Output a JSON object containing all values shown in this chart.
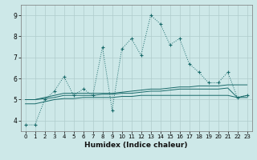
{
  "title": "",
  "xlabel": "Humidex (Indice chaleur)",
  "bg_color": "#cde8e8",
  "grid_color": "#b0cccc",
  "line_color": "#1a6b6b",
  "x": [
    0,
    1,
    2,
    3,
    4,
    5,
    6,
    7,
    8,
    9,
    10,
    11,
    12,
    13,
    14,
    15,
    16,
    17,
    18,
    19,
    20,
    21,
    22,
    23
  ],
  "series1": [
    3.8,
    3.8,
    5.0,
    5.4,
    6.1,
    5.2,
    5.5,
    5.2,
    7.5,
    4.5,
    7.4,
    7.9,
    7.1,
    9.0,
    8.6,
    7.6,
    7.9,
    6.7,
    6.3,
    5.8,
    5.8,
    6.3,
    5.1,
    5.2
  ],
  "series2": [
    5.0,
    5.0,
    5.1,
    5.2,
    5.3,
    5.3,
    5.3,
    5.3,
    5.3,
    5.3,
    5.35,
    5.4,
    5.45,
    5.5,
    5.5,
    5.55,
    5.6,
    5.6,
    5.65,
    5.65,
    5.65,
    5.7,
    5.7,
    5.7
  ],
  "series3": [
    5.0,
    5.0,
    5.05,
    5.1,
    5.2,
    5.2,
    5.2,
    5.2,
    5.25,
    5.25,
    5.3,
    5.3,
    5.35,
    5.4,
    5.4,
    5.45,
    5.5,
    5.5,
    5.5,
    5.5,
    5.5,
    5.55,
    5.1,
    5.2
  ],
  "series4": [
    4.8,
    4.8,
    4.9,
    5.0,
    5.05,
    5.05,
    5.1,
    5.1,
    5.1,
    5.1,
    5.15,
    5.15,
    5.2,
    5.2,
    5.2,
    5.2,
    5.2,
    5.2,
    5.2,
    5.2,
    5.2,
    5.2,
    5.1,
    5.1
  ],
  "ylim": [
    3.5,
    9.5
  ],
  "yticks": [
    4,
    5,
    6,
    7,
    8,
    9
  ],
  "xlim": [
    -0.5,
    23.5
  ]
}
